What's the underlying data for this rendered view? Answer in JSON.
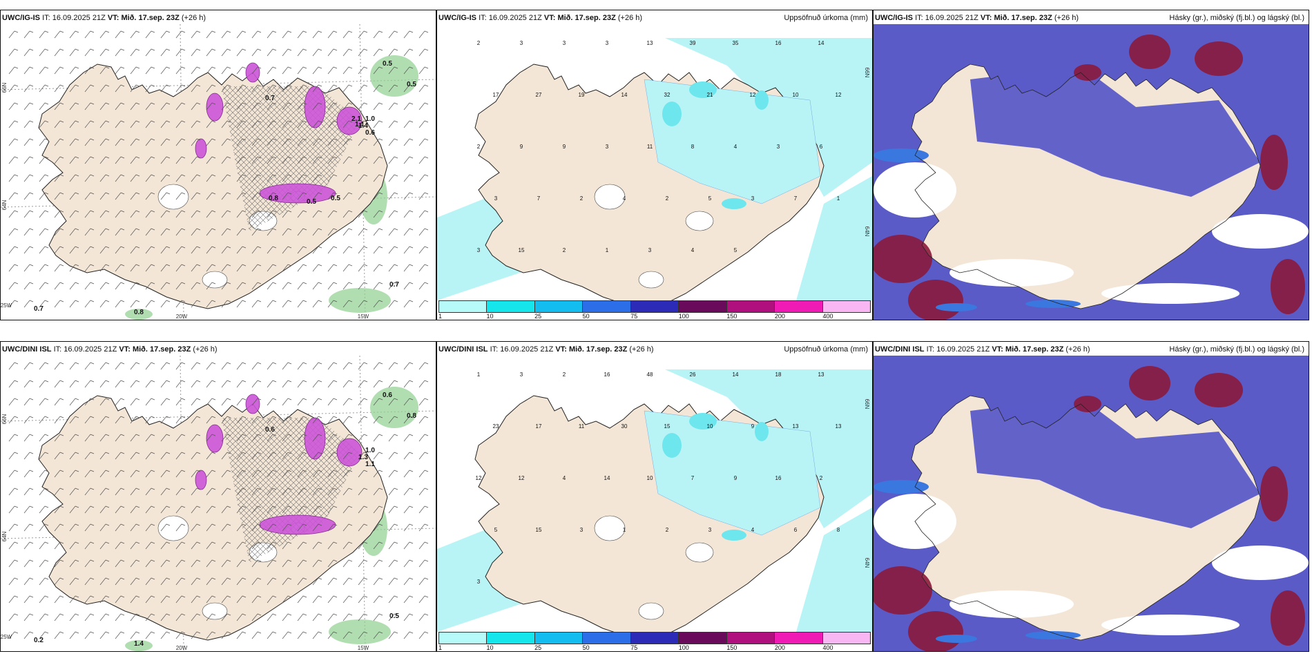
{
  "panels": [
    {
      "id": "r1c1",
      "model": "UWC/IG-IS",
      "it_label": "IT:",
      "it_value": "16.09.2025 21Z",
      "vt_label": "VT:",
      "vt_value": "Mið. 17.sep. 23Z",
      "lead": "(+26 h)",
      "right_title": "",
      "type": "wind",
      "axis_labels": {
        "lat_66": "66N",
        "lat_64": "64N",
        "lon_25": "25W",
        "lon_20": "20W",
        "lon_15": "15W"
      },
      "value_labels": [
        "0.5",
        "0.5",
        "0.7",
        "0.7",
        "0.7",
        "0.8",
        "1.0",
        "1.4",
        "0.6",
        "2.1",
        "0.8",
        "0.5",
        "0.5",
        "1.1"
      ]
    },
    {
      "id": "r1c2",
      "model": "UWC/IG-IS",
      "it_label": "IT:",
      "it_value": "16.09.2025 21Z",
      "vt_label": "VT:",
      "vt_value": "Mið. 17.sep. 23Z",
      "lead": "(+26 h)",
      "right_title": "Uppsöfnuð úrkoma (mm)",
      "type": "precip",
      "axis_labels": {
        "lat_66": "66N",
        "lat_64": "64N"
      },
      "value_labels": [
        "2",
        "3",
        "3",
        "3",
        "13",
        "39",
        "35",
        "16",
        "14",
        "17",
        "27",
        "19",
        "14",
        "32",
        "21",
        "12",
        "10",
        "12",
        "2",
        "9",
        "9",
        "3",
        "11",
        "8",
        "4",
        "3",
        "6",
        "3",
        "7",
        "2",
        "4",
        "2",
        "5",
        "3",
        "7",
        "1",
        "3",
        "15",
        "2",
        "1",
        "3",
        "4",
        "5"
      ]
    },
    {
      "id": "r1c3",
      "model": "UWC/IG-IS",
      "it_label": "IT:",
      "it_value": "16.09.2025 21Z",
      "vt_label": "VT:",
      "vt_value": "Mið. 17.sep. 23Z",
      "lead": "(+26 h)",
      "right_title": "Hásky (gr.), miðský (fj.bl.) og lágský (bl.)",
      "type": "cloud",
      "axis_labels": {},
      "value_labels": []
    },
    {
      "id": "r2c1",
      "model": "UWC/DINI ISL",
      "it_label": "IT:",
      "it_value": "16.09.2025 21Z",
      "vt_label": "VT:",
      "vt_value": "Mið. 17.sep. 23Z",
      "lead": "(+26 h)",
      "right_title": "",
      "type": "wind",
      "axis_labels": {
        "lat_66": "66N",
        "lat_64": "64N",
        "lon_25": "25W",
        "lon_20": "20W",
        "lon_15": "15W"
      },
      "value_labels": [
        "0.6",
        "0.8",
        "0.6",
        "0.2",
        "0.5",
        "1.4",
        "1.0",
        "1.3",
        "1.1"
      ]
    },
    {
      "id": "r2c2",
      "model": "UWC/DINI ISL",
      "it_label": "IT:",
      "it_value": "16.09.2025 21Z",
      "vt_label": "VT:",
      "vt_value": "Mið. 17.sep. 23Z",
      "lead": "(+26 h)",
      "right_title": "Uppsöfnuð úrkoma (mm)",
      "type": "precip",
      "axis_labels": {
        "lat_66": "66N",
        "lat_64": "64N"
      },
      "value_labels": [
        "1",
        "3",
        "2",
        "16",
        "48",
        "26",
        "14",
        "18",
        "13",
        "23",
        "17",
        "11",
        "30",
        "15",
        "10",
        "9",
        "13",
        "13",
        "12",
        "12",
        "4",
        "14",
        "10",
        "7",
        "9",
        "16",
        "2",
        "5",
        "15",
        "3",
        "1",
        "2",
        "3",
        "4",
        "6",
        "8",
        "3"
      ]
    },
    {
      "id": "r2c3",
      "model": "UWC/DINI ISL",
      "it_label": "IT:",
      "it_value": "16.09.2025 21Z",
      "vt_label": "VT:",
      "vt_value": "Mið. 17.sep. 23Z",
      "lead": "(+26 h)",
      "right_title": "Hásky (gr.), miðský (fj.bl.) og lágský (bl.)",
      "type": "cloud",
      "axis_labels": {},
      "value_labels": []
    }
  ],
  "colorbar": {
    "ticks": [
      "1",
      "10",
      "25",
      "50",
      "75",
      "100",
      "150",
      "200",
      "400"
    ],
    "colors": [
      "#b6fafa",
      "#14e6ec",
      "#14bdf0",
      "#2c6de8",
      "#2b2bb8",
      "#6a0a5a",
      "#b0107e",
      "#f01ab4",
      "#f8b6f2"
    ]
  },
  "colors": {
    "land": "#f3e6d6",
    "precip_light": "#b8f4f6",
    "precip_mid": "#6ee6ee",
    "precip_strong": "#1ad0e0",
    "cloud_high": "#8a1a3c",
    "cloud_mid": "#5b5bc8",
    "cloud_low": "#3a78e0",
    "green_fill": "#8ed08e",
    "magenta": "#cc55d8"
  }
}
